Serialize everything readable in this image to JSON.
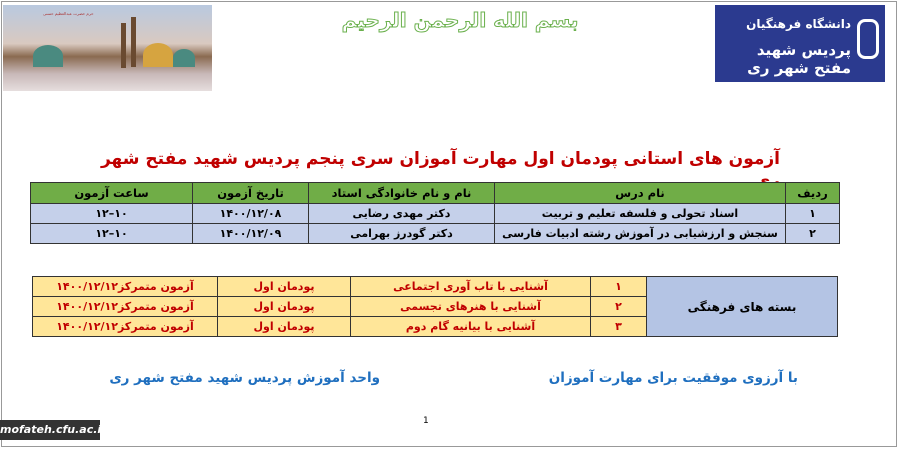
{
  "header": {
    "bismillah": "بسم الله الرحمن الرحیم",
    "logo_line1": "دانشگاه فرهنگیان",
    "logo_line2": "پردیس شهید مفتح شهر ری",
    "photo_caption": "حرم حضرت عبدالعظیم حسنی"
  },
  "title": "آزمون های استانی پودمان اول مهارت آموزان سری پنجم پردیس شهید مفتح شهر ری",
  "exam_table": {
    "headers": [
      "ردیف",
      "نام درس",
      "نام و نام خانوادگی استاد",
      "تاریخ آزمون",
      "ساعت آزمون"
    ],
    "rows": [
      [
        "۱",
        "اسناد تحولی و فلسفه تعلیم و تربیت",
        "دکتر مهدی رضایی",
        "۱۴۰۰/۱۲/۰۸",
        "۱۰–۱۲"
      ],
      [
        "۲",
        "سنجش و ارزشیابی در آموزش رشته ادبیات فارسی",
        "دکتر گودرز بهرامی",
        "۱۴۰۰/۱۲/۰۹",
        "۱۰–۱۲"
      ]
    ]
  },
  "culture_table": {
    "group": "بسته های فرهنگی",
    "rows": [
      [
        "۱",
        "آشنایی با تاب آوری اجتماعی",
        "پودمان اول",
        "آزمون متمرکز۱۴۰۰/۱۲/۱۲"
      ],
      [
        "۲",
        "آشنایی با هنرهای تجسمی",
        "پودمان اول",
        "آزمون متمرکز۱۴۰۰/۱۲/۱۲"
      ],
      [
        "۳",
        "آشنایی با بیانیه گام دوم",
        "پودمان اول",
        "آزمون متمرکز۱۴۰۰/۱۲/۱۲"
      ]
    ]
  },
  "footer": {
    "wish": "با آرزوی موفقیت برای مهارت آموزان",
    "unit": "واحد آموزش پردیس شهید مفتح شهر ری",
    "page": "1",
    "watermark": "mofateh.cfu.ac.ir"
  }
}
